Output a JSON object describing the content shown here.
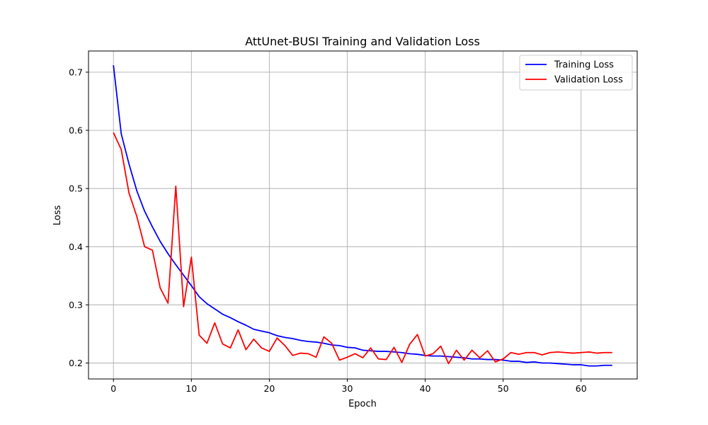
{
  "chart_data": {
    "type": "line",
    "title": "AttUnet-BUSI Training and Validation Loss",
    "xlabel": "Epoch",
    "ylabel": "Loss",
    "xlim": [
      -3.2,
      67.2
    ],
    "ylim": [
      0.1726,
      0.7364
    ],
    "xticks": [
      0,
      10,
      20,
      30,
      40,
      50,
      60
    ],
    "yticks": [
      0.2,
      0.3,
      0.4,
      0.5,
      0.6,
      0.7
    ],
    "grid": true,
    "legend_position": "top-right",
    "x": [
      0,
      1,
      2,
      3,
      4,
      5,
      6,
      7,
      8,
      9,
      10,
      11,
      12,
      13,
      14,
      15,
      16,
      17,
      18,
      19,
      20,
      21,
      22,
      23,
      24,
      25,
      26,
      27,
      28,
      29,
      30,
      31,
      32,
      33,
      34,
      35,
      36,
      37,
      38,
      39,
      40,
      41,
      42,
      43,
      44,
      45,
      46,
      47,
      48,
      49,
      50,
      51,
      52,
      53,
      54,
      55,
      56,
      57,
      58,
      59,
      60,
      61,
      62,
      63,
      64
    ],
    "series": [
      {
        "name": "Training Loss",
        "color": "#0000ff",
        "values": [
          0.712,
          0.594,
          0.542,
          0.496,
          0.461,
          0.434,
          0.409,
          0.388,
          0.369,
          0.351,
          0.333,
          0.314,
          0.302,
          0.293,
          0.284,
          0.278,
          0.271,
          0.265,
          0.258,
          0.255,
          0.252,
          0.247,
          0.244,
          0.242,
          0.239,
          0.237,
          0.236,
          0.234,
          0.231,
          0.23,
          0.227,
          0.226,
          0.222,
          0.221,
          0.22,
          0.22,
          0.219,
          0.218,
          0.216,
          0.215,
          0.213,
          0.212,
          0.212,
          0.211,
          0.21,
          0.209,
          0.207,
          0.207,
          0.206,
          0.206,
          0.205,
          0.203,
          0.203,
          0.201,
          0.202,
          0.2,
          0.2,
          0.199,
          0.198,
          0.197,
          0.197,
          0.195,
          0.195,
          0.196,
          0.196
        ]
      },
      {
        "name": "Validation Loss",
        "color": "#ff0000",
        "values": [
          0.596,
          0.567,
          0.492,
          0.452,
          0.4,
          0.394,
          0.329,
          0.303,
          0.504,
          0.297,
          0.382,
          0.248,
          0.234,
          0.269,
          0.233,
          0.226,
          0.257,
          0.223,
          0.241,
          0.226,
          0.22,
          0.243,
          0.23,
          0.213,
          0.217,
          0.216,
          0.21,
          0.245,
          0.234,
          0.205,
          0.21,
          0.216,
          0.209,
          0.226,
          0.207,
          0.206,
          0.227,
          0.201,
          0.232,
          0.249,
          0.212,
          0.216,
          0.229,
          0.199,
          0.222,
          0.205,
          0.222,
          0.209,
          0.221,
          0.202,
          0.207,
          0.218,
          0.215,
          0.218,
          0.218,
          0.214,
          0.218,
          0.219,
          0.218,
          0.217,
          0.218,
          0.219,
          0.217,
          0.218,
          0.218
        ]
      }
    ]
  }
}
